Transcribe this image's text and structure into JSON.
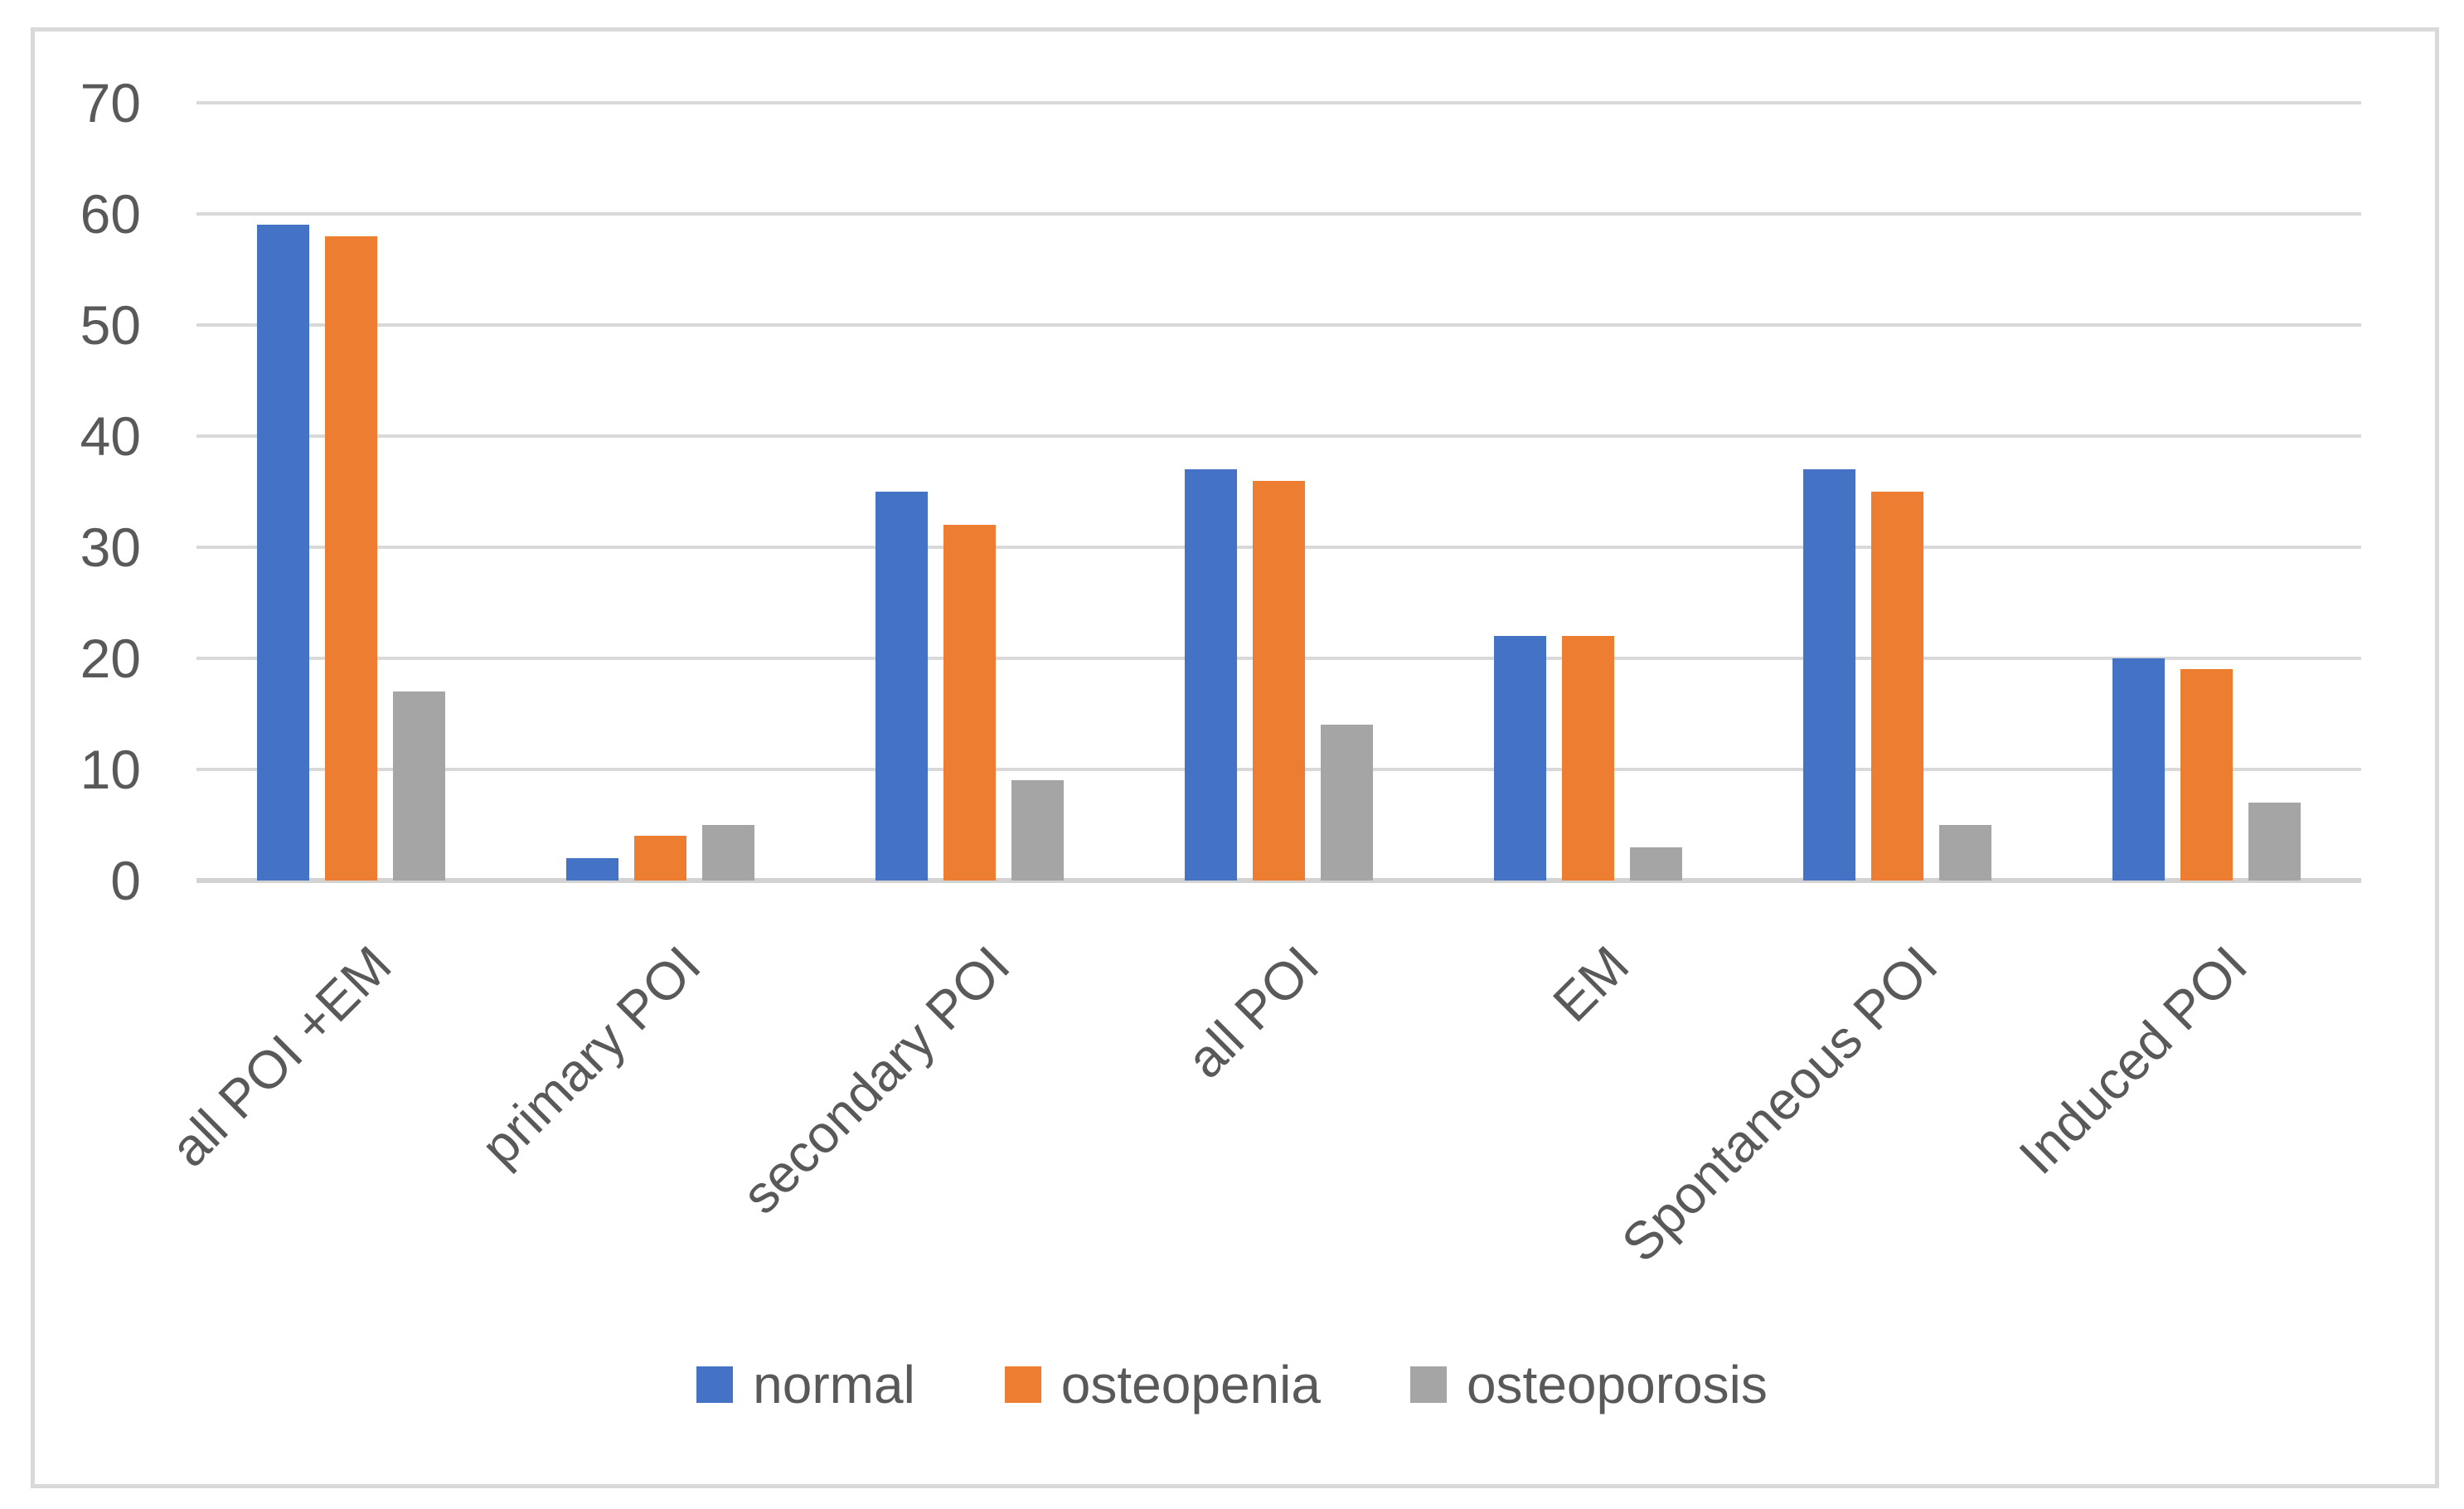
{
  "chart_data": {
    "type": "bar",
    "title": "",
    "xlabel": "",
    "ylabel": "",
    "categories": [
      "all POI +EM",
      "primary POI",
      "secondary POI",
      "all POI",
      "EM",
      "Spontaneous POI",
      "Induced POI"
    ],
    "series": [
      {
        "name": "normal",
        "color": "#4472C4",
        "values": [
          59,
          2,
          35,
          37,
          22,
          37,
          20
        ]
      },
      {
        "name": "osteopenia",
        "color": "#ED7D31",
        "values": [
          58,
          4,
          32,
          36,
          22,
          35,
          19
        ]
      },
      {
        "name": "osteoporosis",
        "color": "#A5A5A5",
        "values": [
          17,
          5,
          9,
          14,
          3,
          5,
          7
        ]
      }
    ],
    "ylim": [
      0,
      70
    ],
    "y_tick_step": 10,
    "y_tick_labels": [
      "0",
      "10",
      "20",
      "30",
      "40",
      "50",
      "60",
      "70"
    ],
    "grid": true,
    "gridline_color": "#D9D9D9",
    "baseline_color": "#D2D2D2",
    "axis_text_color": "#595959",
    "chart_border_color": "#D9D9D9",
    "legend_position": "bottom"
  }
}
